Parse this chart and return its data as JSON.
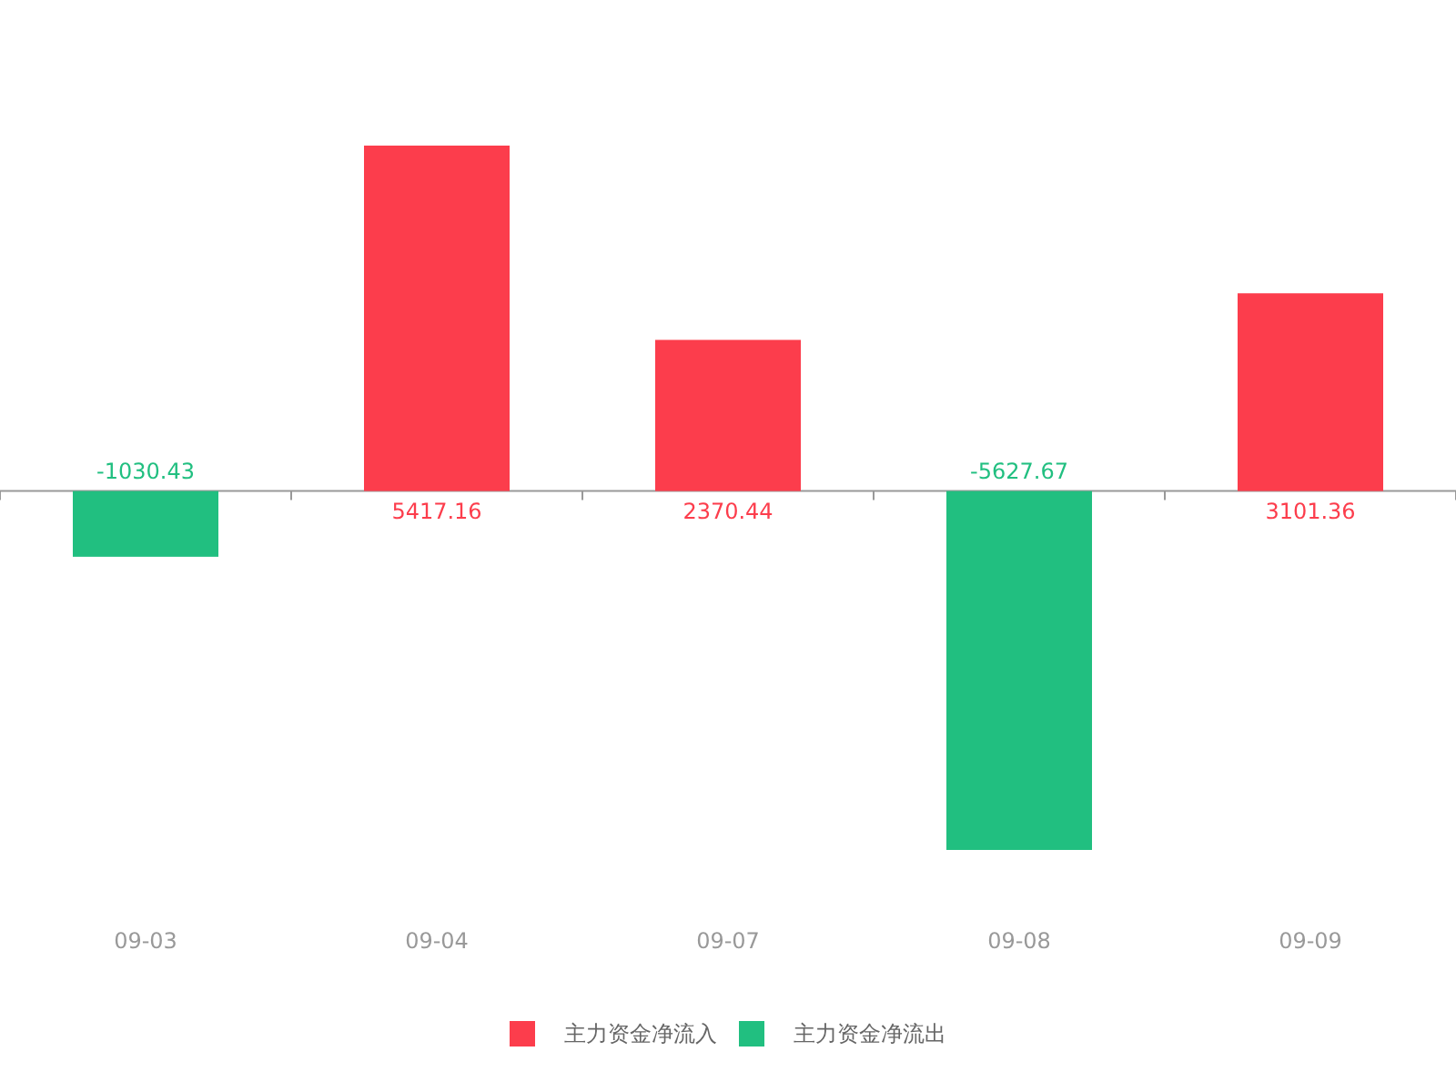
{
  "chart_data": {
    "type": "bar",
    "stacked": true,
    "data_labels": true,
    "legend": "bottom",
    "categories": [
      "09-03",
      "09-04",
      "09-07",
      "09-08",
      "09-09"
    ],
    "series": [
      {
        "name": "主力资金净流入",
        "color": "#fc3d4c",
        "values": [
          null,
          5417.16,
          2370.44,
          null,
          3101.36
        ]
      },
      {
        "name": "主力资金净流出",
        "color": "#21bf80",
        "values": [
          -1030.43,
          null,
          null,
          -5627.67,
          null
        ]
      }
    ]
  }
}
